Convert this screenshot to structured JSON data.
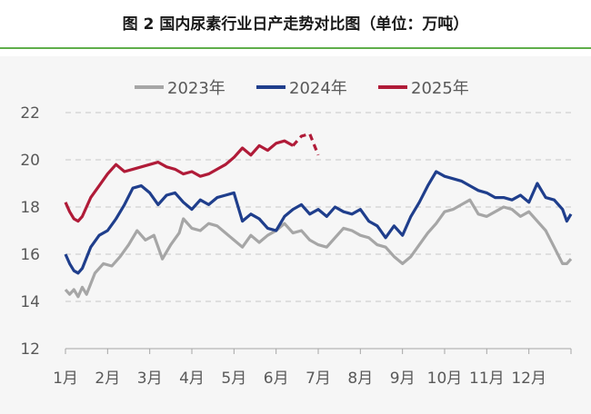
{
  "page": {
    "title": "图 2  国内尿素行业日产走势对比图（单位：万吨）"
  },
  "colors": {
    "s2023": "#a6a6a6",
    "s2024": "#1f3e8c",
    "s2025": "#b01b38",
    "accent": "#5fae4a"
  },
  "chart_data": {
    "type": "line",
    "title": "图 2  国内尿素行业日产走势对比图（单位：万吨）",
    "ylim": [
      12,
      22
    ],
    "yticks": [
      "12",
      "14",
      "16",
      "18",
      "20",
      "22"
    ],
    "xlim": [
      1,
      13
    ],
    "xticks": [
      "1月",
      "2月",
      "3月",
      "4月",
      "5月",
      "6月",
      "7月",
      "8月",
      "9月",
      "10月",
      "11月",
      "12月"
    ],
    "grid": "horizontal dashed",
    "legend_position": "top",
    "series": [
      {
        "name": "2023年",
        "x": [
          1.0,
          1.1,
          1.2,
          1.3,
          1.4,
          1.5,
          1.7,
          1.9,
          2.1,
          2.3,
          2.5,
          2.7,
          2.9,
          3.1,
          3.3,
          3.5,
          3.7,
          3.8,
          4.0,
          4.2,
          4.4,
          4.6,
          4.8,
          5.0,
          5.2,
          5.4,
          5.6,
          5.8,
          6.0,
          6.2,
          6.4,
          6.6,
          6.8,
          7.0,
          7.2,
          7.4,
          7.6,
          7.8,
          8.0,
          8.2,
          8.4,
          8.6,
          8.8,
          9.0,
          9.2,
          9.4,
          9.6,
          9.8,
          10.0,
          10.2,
          10.4,
          10.6,
          10.8,
          11.0,
          11.2,
          11.4,
          11.6,
          11.8,
          12.0,
          12.2,
          12.4,
          12.6,
          12.8,
          12.9,
          13.0
        ],
        "values": [
          14.5,
          14.3,
          14.5,
          14.2,
          14.6,
          14.3,
          15.2,
          15.6,
          15.5,
          15.9,
          16.4,
          17.0,
          16.6,
          16.8,
          15.8,
          16.4,
          16.9,
          17.5,
          17.1,
          17.0,
          17.3,
          17.2,
          16.9,
          16.6,
          16.3,
          16.8,
          16.5,
          16.8,
          17.0,
          17.3,
          16.9,
          17.0,
          16.6,
          16.4,
          16.3,
          16.7,
          17.1,
          17.0,
          16.8,
          16.7,
          16.4,
          16.3,
          15.9,
          15.6,
          15.9,
          16.4,
          16.9,
          17.3,
          17.8,
          17.9,
          18.1,
          18.3,
          17.7,
          17.6,
          17.8,
          18.0,
          17.9,
          17.6,
          17.8,
          17.4,
          17.0,
          16.3,
          15.6,
          15.6,
          15.8
        ]
      },
      {
        "name": "2024年",
        "x": [
          1.0,
          1.1,
          1.2,
          1.3,
          1.4,
          1.6,
          1.8,
          2.0,
          2.2,
          2.4,
          2.6,
          2.8,
          3.0,
          3.2,
          3.4,
          3.6,
          3.8,
          4.0,
          4.2,
          4.4,
          4.6,
          4.8,
          5.0,
          5.2,
          5.4,
          5.6,
          5.8,
          6.0,
          6.2,
          6.4,
          6.6,
          6.8,
          7.0,
          7.2,
          7.4,
          7.6,
          7.8,
          8.0,
          8.2,
          8.4,
          8.6,
          8.8,
          9.0,
          9.2,
          9.4,
          9.6,
          9.8,
          10.0,
          10.2,
          10.4,
          10.6,
          10.8,
          11.0,
          11.2,
          11.4,
          11.6,
          11.8,
          12.0,
          12.2,
          12.4,
          12.6,
          12.8,
          12.9,
          13.0
        ],
        "values": [
          16.0,
          15.6,
          15.3,
          15.2,
          15.4,
          16.3,
          16.8,
          17.0,
          17.5,
          18.1,
          18.8,
          18.9,
          18.6,
          18.1,
          18.5,
          18.6,
          18.2,
          17.9,
          18.3,
          18.1,
          18.4,
          18.5,
          18.6,
          17.4,
          17.7,
          17.5,
          17.1,
          17.0,
          17.6,
          17.9,
          18.1,
          17.7,
          17.9,
          17.6,
          18.0,
          17.8,
          17.7,
          17.9,
          17.4,
          17.2,
          16.7,
          17.2,
          16.8,
          17.6,
          18.2,
          18.9,
          19.5,
          19.3,
          19.2,
          19.1,
          18.9,
          18.7,
          18.6,
          18.4,
          18.4,
          18.3,
          18.5,
          18.2,
          19.0,
          18.4,
          18.3,
          17.9,
          17.4,
          17.7
        ]
      },
      {
        "name": "2025年",
        "x": [
          1.0,
          1.1,
          1.2,
          1.3,
          1.4,
          1.6,
          1.8,
          2.0,
          2.2,
          2.4,
          2.6,
          2.8,
          3.0,
          3.2,
          3.4,
          3.6,
          3.8,
          4.0,
          4.2,
          4.4,
          4.6,
          4.8,
          5.0,
          5.2,
          5.4,
          5.6,
          5.8,
          6.0,
          6.2,
          6.4,
          6.6,
          6.8,
          7.0
        ],
        "values": [
          18.2,
          17.8,
          17.5,
          17.4,
          17.6,
          18.4,
          18.9,
          19.4,
          19.8,
          19.5,
          19.6,
          19.7,
          19.8,
          19.9,
          19.7,
          19.6,
          19.4,
          19.5,
          19.3,
          19.4,
          19.6,
          19.8,
          20.1,
          20.5,
          20.2,
          20.6,
          20.4,
          20.7,
          20.8,
          20.6,
          21.0,
          21.1,
          20.2
        ],
        "solid_until_x": 6.5
      }
    ]
  }
}
